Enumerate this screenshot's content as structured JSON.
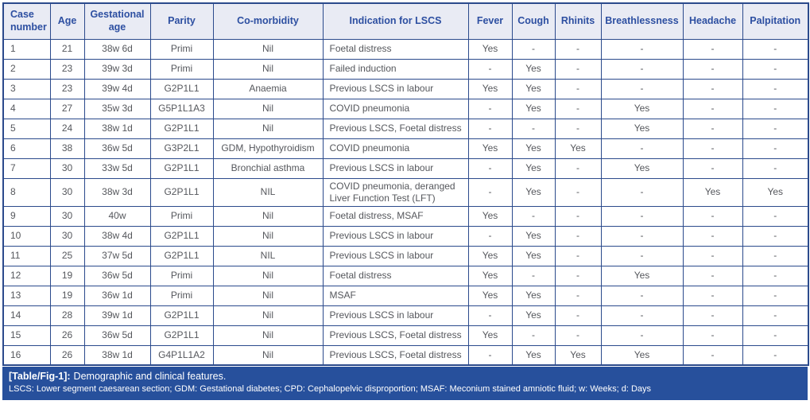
{
  "table": {
    "columns": [
      "Case number",
      "Age",
      "Gestational age",
      "Parity",
      "Co-morbidity",
      "Indication for LSCS",
      "Fever",
      "Cough",
      "Rhinits",
      "Breathlessness",
      "Headache",
      "Palpitation"
    ],
    "rows": [
      [
        "1",
        "21",
        "38w 6d",
        "Primi",
        "Nil",
        "Foetal distress",
        "Yes",
        "-",
        "-",
        "-",
        "-",
        "-"
      ],
      [
        "2",
        "23",
        "39w 3d",
        "Primi",
        "Nil",
        "Failed induction",
        "-",
        "Yes",
        "-",
        "-",
        "-",
        "-"
      ],
      [
        "3",
        "23",
        "39w 4d",
        "G2P1L1",
        "Anaemia",
        "Previous LSCS in labour",
        "Yes",
        "Yes",
        "-",
        "-",
        "-",
        "-"
      ],
      [
        "4",
        "27",
        "35w 3d",
        "G5P1L1A3",
        "Nil",
        "COVID pneumonia",
        "-",
        "Yes",
        "-",
        "Yes",
        "-",
        "-"
      ],
      [
        "5",
        "24",
        "38w 1d",
        "G2P1L1",
        "Nil",
        "Previous LSCS, Foetal distress",
        "-",
        "-",
        "-",
        "Yes",
        "-",
        "-"
      ],
      [
        "6",
        "38",
        "36w 5d",
        "G3P2L1",
        "GDM, Hypothyroidism",
        "COVID pneumonia",
        "Yes",
        "Yes",
        "Yes",
        "-",
        "-",
        "-"
      ],
      [
        "7",
        "30",
        "33w 5d",
        "G2P1L1",
        "Bronchial asthma",
        "Previous LSCS in labour",
        "-",
        "Yes",
        "-",
        "Yes",
        "-",
        "-"
      ],
      [
        "8",
        "30",
        "38w 3d",
        "G2P1L1",
        "NIL",
        "COVID pneumonia, deranged Liver Function Test (LFT)",
        "-",
        "Yes",
        "-",
        "-",
        "Yes",
        "Yes"
      ],
      [
        "9",
        "30",
        "40w",
        "Primi",
        "Nil",
        "Foetal distress, MSAF",
        "Yes",
        "-",
        "-",
        "-",
        "-",
        "-"
      ],
      [
        "10",
        "30",
        "38w 4d",
        "G2P1L1",
        "Nil",
        "Previous LSCS in labour",
        "-",
        "Yes",
        "-",
        "-",
        "-",
        "-"
      ],
      [
        "11",
        "25",
        "37w 5d",
        "G2P1L1",
        "NIL",
        "Previous LSCS in labour",
        "Yes",
        "Yes",
        "-",
        "-",
        "-",
        "-"
      ],
      [
        "12",
        "19",
        "36w 5d",
        "Primi",
        "Nil",
        "Foetal distress",
        "Yes",
        "-",
        "-",
        "Yes",
        "-",
        "-"
      ],
      [
        "13",
        "19",
        "36w 1d",
        "Primi",
        "Nil",
        "MSAF",
        "Yes",
        "Yes",
        "-",
        "-",
        "-",
        "-"
      ],
      [
        "14",
        "28",
        "39w 1d",
        "G2P1L1",
        "Nil",
        "Previous LSCS in labour",
        "-",
        "Yes",
        "-",
        "-",
        "-",
        "-"
      ],
      [
        "15",
        "26",
        "36w 5d",
        "G2P1L1",
        "Nil",
        "Previous LSCS, Foetal distress",
        "Yes",
        "-",
        "-",
        "-",
        "-",
        "-"
      ],
      [
        "16",
        "26",
        "38w 1d",
        "G4P1L1A2",
        "Nil",
        "Previous LSCS, Foetal distress",
        "-",
        "Yes",
        "Yes",
        "Yes",
        "-",
        "-"
      ]
    ]
  },
  "caption": {
    "label": "[Table/Fig-1]:",
    "title": "Demographic and clinical features.",
    "footnote": "LSCS: Lower segment caesarean section; GDM: Gestational diabetes; CPD: Cephalopelvic disproportion; MSAF: Meconium stained amniotic fluid; w: Weeks; d: Days"
  },
  "colors": {
    "border": "#2b4a8c",
    "header_bg": "#e9ebf4",
    "header_text": "#2d4fa1",
    "body_text": "#55575c",
    "caption_bg": "#27509c",
    "caption_text": "#ffffff"
  }
}
